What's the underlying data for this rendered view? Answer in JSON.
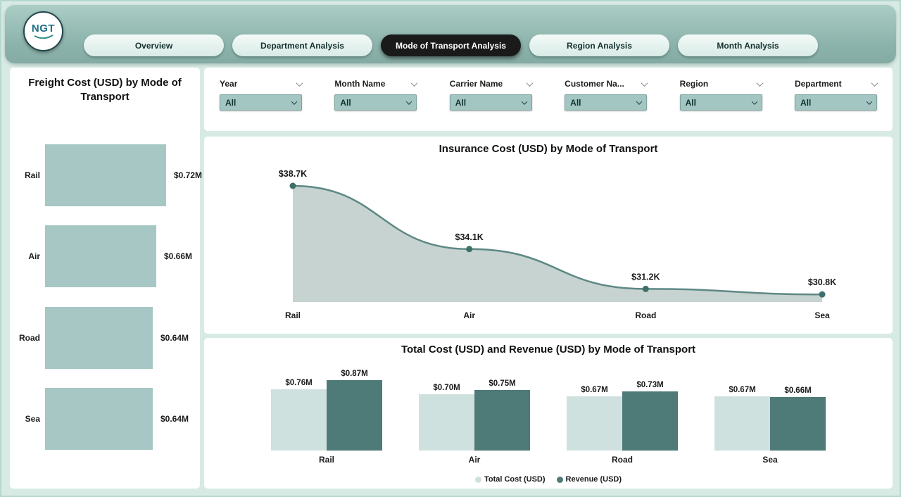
{
  "header": {
    "logo_text": "NGT",
    "nav": [
      {
        "label": "Overview"
      },
      {
        "label": "Department Analysis"
      },
      {
        "label": "Mode of Transport Analysis",
        "active": true
      },
      {
        "label": "Region Analysis"
      },
      {
        "label": "Month Analysis"
      }
    ]
  },
  "filters": {
    "items": [
      {
        "label": "Year",
        "value": "All"
      },
      {
        "label": "Month Name",
        "value": "All"
      },
      {
        "label": "Carrier Name",
        "value": "All"
      },
      {
        "label": "Customer Na...",
        "value": "All"
      },
      {
        "label": "Region",
        "value": "All"
      },
      {
        "label": "Department",
        "value": "All"
      }
    ]
  },
  "chart_data": [
    {
      "type": "bar",
      "orientation": "horizontal",
      "title": "Freight Cost (USD) by Mode of Transport",
      "categories": [
        "Rail",
        "Air",
        "Road",
        "Sea"
      ],
      "values": [
        0.72,
        0.66,
        0.64,
        0.64
      ],
      "labels": [
        "$0.72M",
        "$0.66M",
        "$0.64M",
        "$0.64M"
      ],
      "unit": "USD millions",
      "color": "#a6c7c4"
    },
    {
      "type": "area",
      "title": "Insurance Cost (USD) by Mode of Transport",
      "categories": [
        "Rail",
        "Air",
        "Road",
        "Sea"
      ],
      "values": [
        38.7,
        34.1,
        31.2,
        30.8
      ],
      "labels": [
        "$38.7K",
        "$34.1K",
        "$31.2K",
        "$30.8K"
      ],
      "unit": "USD thousands",
      "fill": "#c7d3d0",
      "line_color": "#5d8884",
      "point_color": "#3e6f6c"
    },
    {
      "type": "bar",
      "title": "Total Cost (USD) and Revenue (USD) by Mode of Transport",
      "categories": [
        "Rail",
        "Air",
        "Road",
        "Sea"
      ],
      "series": [
        {
          "name": "Total Cost (USD)",
          "values": [
            0.76,
            0.7,
            0.67,
            0.67
          ],
          "labels": [
            "$0.76M",
            "$0.70M",
            "$0.67M",
            "$0.67M"
          ],
          "color": "#cfe1de"
        },
        {
          "name": "Revenue (USD)",
          "values": [
            0.87,
            0.75,
            0.73,
            0.66
          ],
          "labels": [
            "$0.87M",
            "$0.75M",
            "$0.73M",
            "$0.66M"
          ],
          "color": "#4e7a78"
        }
      ],
      "legend_position": "bottom"
    }
  ]
}
